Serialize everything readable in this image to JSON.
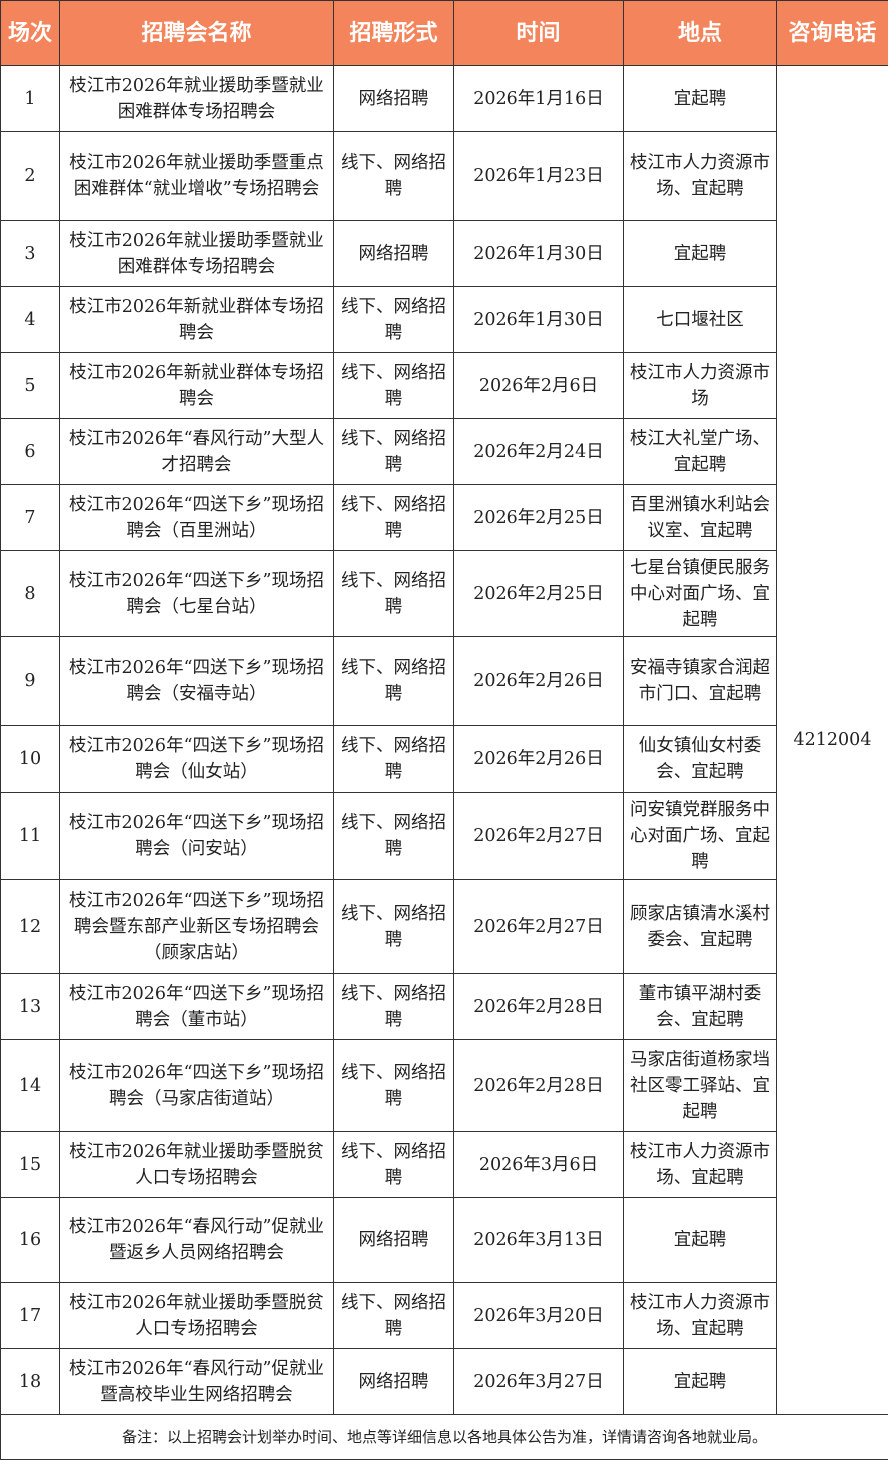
{
  "colors": {
    "header_bg": "#F4845B",
    "header_text": "#FFFFFF",
    "border": "#333333"
  },
  "headers": [
    "场次",
    "招聘会名称",
    "招聘形式",
    "时间",
    "地点",
    "咨询电话"
  ],
  "phone": "4212004",
  "rows": [
    {
      "no": "1",
      "name": "枝江市2026年就业援助季暨就业困难群体专场招聘会",
      "form": "网络招聘",
      "date": "2026年1月16日",
      "place": "宜起聘"
    },
    {
      "no": "2",
      "name": "枝江市2026年就业援助季暨重点困难群体“就业增收”专场招聘会",
      "form": "线下、网络招聘",
      "date": "2026年1月23日",
      "place": "枝江市人力资源市场、宜起聘"
    },
    {
      "no": "3",
      "name": "枝江市2026年就业援助季暨就业困难群体专场招聘会",
      "form": "网络招聘",
      "date": "2026年1月30日",
      "place": "宜起聘"
    },
    {
      "no": "4",
      "name": "枝江市2026年新就业群体专场招聘会",
      "form": "线下、网络招聘",
      "date": "2026年1月30日",
      "place": "七口堰社区"
    },
    {
      "no": "5",
      "name": "枝江市2026年新就业群体专场招聘会",
      "form": "线下、网络招聘",
      "date": "2026年2月6日",
      "place": "枝江市人力资源市场"
    },
    {
      "no": "6",
      "name": "枝江市2026年“春风行动”大型人才招聘会",
      "form": "线下、网络招聘",
      "date": "2026年2月24日",
      "place": "枝江大礼堂广场、宜起聘"
    },
    {
      "no": "7",
      "name": "枝江市2026年“四送下乡”现场招聘会（百里洲站）",
      "form": "线下、网络招聘",
      "date": "2026年2月25日",
      "place": "百里洲镇水利站会议室、宜起聘"
    },
    {
      "no": "8",
      "name": "枝江市2026年“四送下乡”现场招聘会（七星台站）",
      "form": "线下、网络招聘",
      "date": "2026年2月25日",
      "place": "七星台镇便民服务中心对面广场、宜起聘"
    },
    {
      "no": "9",
      "name": "枝江市2026年“四送下乡”现场招聘会（安福寺站）",
      "form": "线下、网络招聘",
      "date": "2026年2月26日",
      "place": "安福寺镇家合润超市门口、宜起聘"
    },
    {
      "no": "10",
      "name": "枝江市2026年“四送下乡”现场招聘会（仙女站）",
      "form": "线下、网络招聘",
      "date": "2026年2月26日",
      "place": "仙女镇仙女村委会、宜起聘"
    },
    {
      "no": "11",
      "name": "枝江市2026年“四送下乡”现场招聘会（问安站）",
      "form": "线下、网络招聘",
      "date": "2026年2月27日",
      "place": "问安镇党群服务中心对面广场、宜起聘"
    },
    {
      "no": "12",
      "name": "枝江市2026年“四送下乡”现场招聘会暨东部产业新区专场招聘会（顾家店站）",
      "form": "线下、网络招聘",
      "date": "2026年2月27日",
      "place": "顾家店镇清水溪村委会、宜起聘"
    },
    {
      "no": "13",
      "name": "枝江市2026年“四送下乡”现场招聘会（董市站）",
      "form": "线下、网络招聘",
      "date": "2026年2月28日",
      "place": "董市镇平湖村委会、宜起聘"
    },
    {
      "no": "14",
      "name": "枝江市2026年“四送下乡”现场招聘会（马家店街道站）",
      "form": "线下、网络招聘",
      "date": "2026年2月28日",
      "place": "马家店街道杨家垱社区零工驿站、宜起聘"
    },
    {
      "no": "15",
      "name": "枝江市2026年就业援助季暨脱贫人口专场招聘会",
      "form": "线下、网络招聘",
      "date": "2026年3月6日",
      "place": "枝江市人力资源市场、宜起聘"
    },
    {
      "no": "16",
      "name": "枝江市2026年“春风行动”促就业暨返乡人员网络招聘会",
      "form": "网络招聘",
      "date": "2026年3月13日",
      "place": "宜起聘"
    },
    {
      "no": "17",
      "name": "枝江市2026年就业援助季暨脱贫人口专场招聘会",
      "form": "线下、网络招聘",
      "date": "2026年3月20日",
      "place": "枝江市人力资源市场、宜起聘"
    },
    {
      "no": "18",
      "name": "枝江市2026年“春风行动”促就业暨高校毕业生网络招聘会",
      "form": "网络招聘",
      "date": "2026年3月27日",
      "place": "宜起聘"
    }
  ],
  "footer_note": "备注：以上招聘会计划举办时间、地点等详细信息以各地具体公告为准，详情请咨询各地就业局。"
}
